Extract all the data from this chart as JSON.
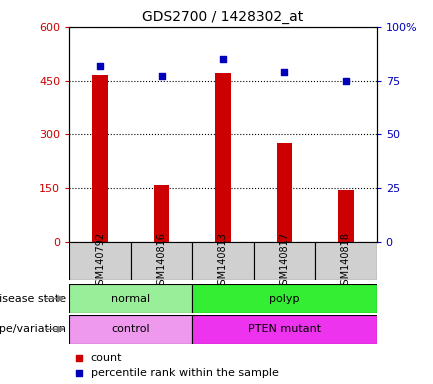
{
  "title": "GDS2700 / 1428302_at",
  "samples": [
    "GSM140792",
    "GSM140816",
    "GSM140813",
    "GSM140817",
    "GSM140818"
  ],
  "counts": [
    465,
    160,
    470,
    275,
    145
  ],
  "percentile_ranks": [
    82,
    77,
    85,
    79,
    75
  ],
  "ylim_left": [
    0,
    600
  ],
  "ylim_right": [
    0,
    100
  ],
  "yticks_left": [
    0,
    150,
    300,
    450,
    600
  ],
  "yticks_right": [
    0,
    25,
    50,
    75,
    100
  ],
  "bar_color": "#cc0000",
  "dot_color": "#0000bb",
  "disease_state": [
    [
      "normal",
      2
    ],
    [
      "polyp",
      3
    ]
  ],
  "genotype": [
    [
      "control",
      2
    ],
    [
      "PTEN mutant",
      3
    ]
  ],
  "disease_colors": [
    "#99ee99",
    "#33ee33"
  ],
  "genotype_colors": [
    "#ee99ee",
    "#ee33ee"
  ],
  "label_color_left": "#cc0000",
  "label_color_right": "#0000bb",
  "legend_count_color": "#cc0000",
  "legend_pct_color": "#0000bb",
  "bg_color": "#ffffff",
  "plot_bg": "#ffffff"
}
